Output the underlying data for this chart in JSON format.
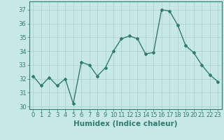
{
  "x": [
    0,
    1,
    2,
    3,
    4,
    5,
    6,
    7,
    8,
    9,
    10,
    11,
    12,
    13,
    14,
    15,
    16,
    17,
    18,
    19,
    20,
    21,
    22,
    23
  ],
  "y": [
    32.2,
    31.5,
    32.1,
    31.5,
    32.0,
    30.2,
    33.2,
    33.0,
    32.2,
    32.8,
    34.0,
    34.9,
    35.1,
    34.9,
    33.8,
    33.9,
    37.0,
    36.9,
    35.9,
    34.4,
    33.9,
    33.0,
    32.3,
    31.8
  ],
  "line_color": "#2e7d6e",
  "bg_color": "#c8e8e8",
  "grid_color": "#aacece",
  "xlabel": "Humidex (Indice chaleur)",
  "ylim": [
    29.8,
    37.6
  ],
  "yticks": [
    30,
    31,
    32,
    33,
    34,
    35,
    36,
    37
  ],
  "xticks": [
    0,
    1,
    2,
    3,
    4,
    5,
    6,
    7,
    8,
    9,
    10,
    11,
    12,
    13,
    14,
    15,
    16,
    17,
    18,
    19,
    20,
    21,
    22,
    23
  ],
  "marker": "D",
  "markersize": 2.0,
  "linewidth": 1.0,
  "xlabel_fontsize": 7.5,
  "tick_fontsize": 6.0
}
